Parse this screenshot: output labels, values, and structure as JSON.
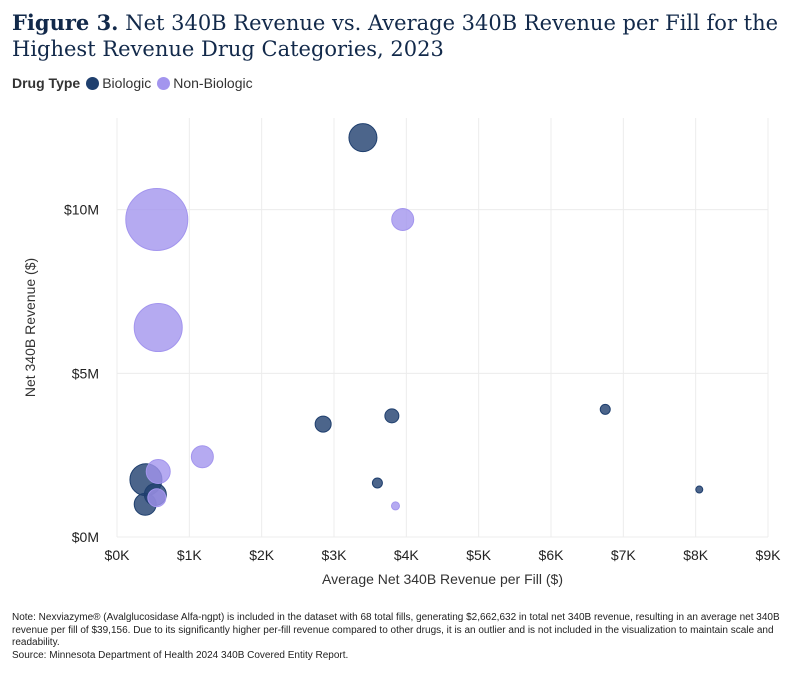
{
  "header": {
    "figure_label": "Figure 3.",
    "title_text": "Net 340B Revenue vs. Average 340B Revenue per Fill for the Highest Revenue Drug Categories, 2023"
  },
  "legend": {
    "title": "Drug Type",
    "items": [
      {
        "label": "Biologic",
        "color": "#1f3f6e"
      },
      {
        "label": "Non-Biologic",
        "color": "#a395ee"
      }
    ]
  },
  "chart_data": {
    "type": "scatter",
    "xlabel": "Average Net 340B Revenue per Fill ($)",
    "ylabel": "Net 340B Revenue ($)",
    "xlim": [
      0,
      9000
    ],
    "ylim": [
      0,
      12800000
    ],
    "x_ticks": [
      {
        "value": 0,
        "label": "$0K"
      },
      {
        "value": 1000,
        "label": "$1K"
      },
      {
        "value": 2000,
        "label": "$2K"
      },
      {
        "value": 3000,
        "label": "$3K"
      },
      {
        "value": 4000,
        "label": "$4K"
      },
      {
        "value": 5000,
        "label": "$5K"
      },
      {
        "value": 6000,
        "label": "$6K"
      },
      {
        "value": 7000,
        "label": "$7K"
      },
      {
        "value": 8000,
        "label": "$8K"
      },
      {
        "value": 9000,
        "label": "$9K"
      }
    ],
    "y_ticks": [
      {
        "value": 0,
        "label": "$0M"
      },
      {
        "value": 5000000,
        "label": "$5M"
      },
      {
        "value": 10000000,
        "label": "$10M"
      }
    ],
    "series": [
      {
        "name": "Biologic",
        "color": "#1f3f6e",
        "points": [
          {
            "x": 3400,
            "y": 12200000,
            "size": 14
          },
          {
            "x": 2850,
            "y": 3450000,
            "size": 8
          },
          {
            "x": 3800,
            "y": 3700000,
            "size": 7
          },
          {
            "x": 6750,
            "y": 3900000,
            "size": 5
          },
          {
            "x": 3600,
            "y": 1650000,
            "size": 5
          },
          {
            "x": 8050,
            "y": 1450000,
            "size": 3.5
          },
          {
            "x": 400,
            "y": 1750000,
            "size": 16
          },
          {
            "x": 530,
            "y": 1300000,
            "size": 11
          },
          {
            "x": 390,
            "y": 1000000,
            "size": 11
          }
        ]
      },
      {
        "name": "Non-Biologic",
        "color": "#a395ee",
        "points": [
          {
            "x": 550,
            "y": 9700000,
            "size": 31
          },
          {
            "x": 570,
            "y": 6400000,
            "size": 24
          },
          {
            "x": 3950,
            "y": 9700000,
            "size": 11
          },
          {
            "x": 1180,
            "y": 2450000,
            "size": 11
          },
          {
            "x": 570,
            "y": 2000000,
            "size": 12
          },
          {
            "x": 550,
            "y": 1200000,
            "size": 9
          },
          {
            "x": 3850,
            "y": 950000,
            "size": 4
          }
        ]
      }
    ]
  },
  "footnote": {
    "note": "Note: Nexviazyme® (Avalglucosidase Alfa-ngpt) is included in the dataset with 68 total fills, generating $2,662,632 in total net 340B revenue, resulting in an average net 340B revenue per fill of $39,156. Due to its significantly higher per-fill revenue compared to other drugs, it is an outlier and is not included in the visualization to maintain scale and readability.",
    "source": "Source: Minnesota Department of Health 2024 340B Covered Entity Report."
  }
}
